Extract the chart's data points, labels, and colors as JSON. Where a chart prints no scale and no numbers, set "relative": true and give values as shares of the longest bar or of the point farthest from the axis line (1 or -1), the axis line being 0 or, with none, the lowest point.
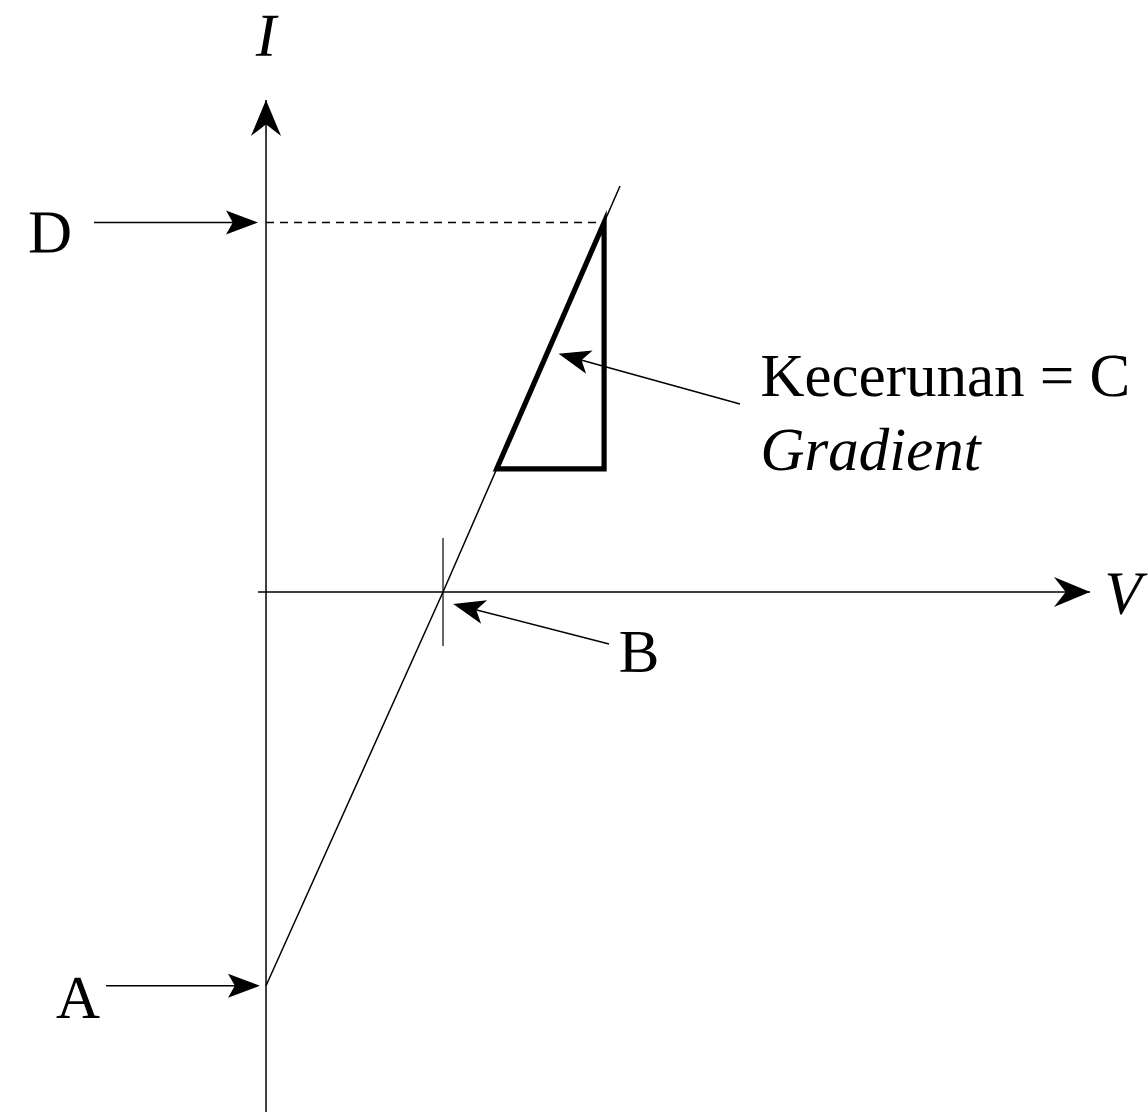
{
  "chart_data": {
    "type": "line",
    "relative": true,
    "categories": [
      null,
      null,
      null
    ],
    "values": [
      -0.97,
      0,
      1
    ],
    "color": "#000000",
    "ylabel": "I",
    "ref_lines": [
      {
        "axis": "y",
        "value": 0.91,
        "label": "D",
        "line_style": "dashed"
      }
    ],
    "annotations": [
      "A",
      "B",
      "V",
      "Kecerunan = C",
      "Gradient"
    ]
  }
}
